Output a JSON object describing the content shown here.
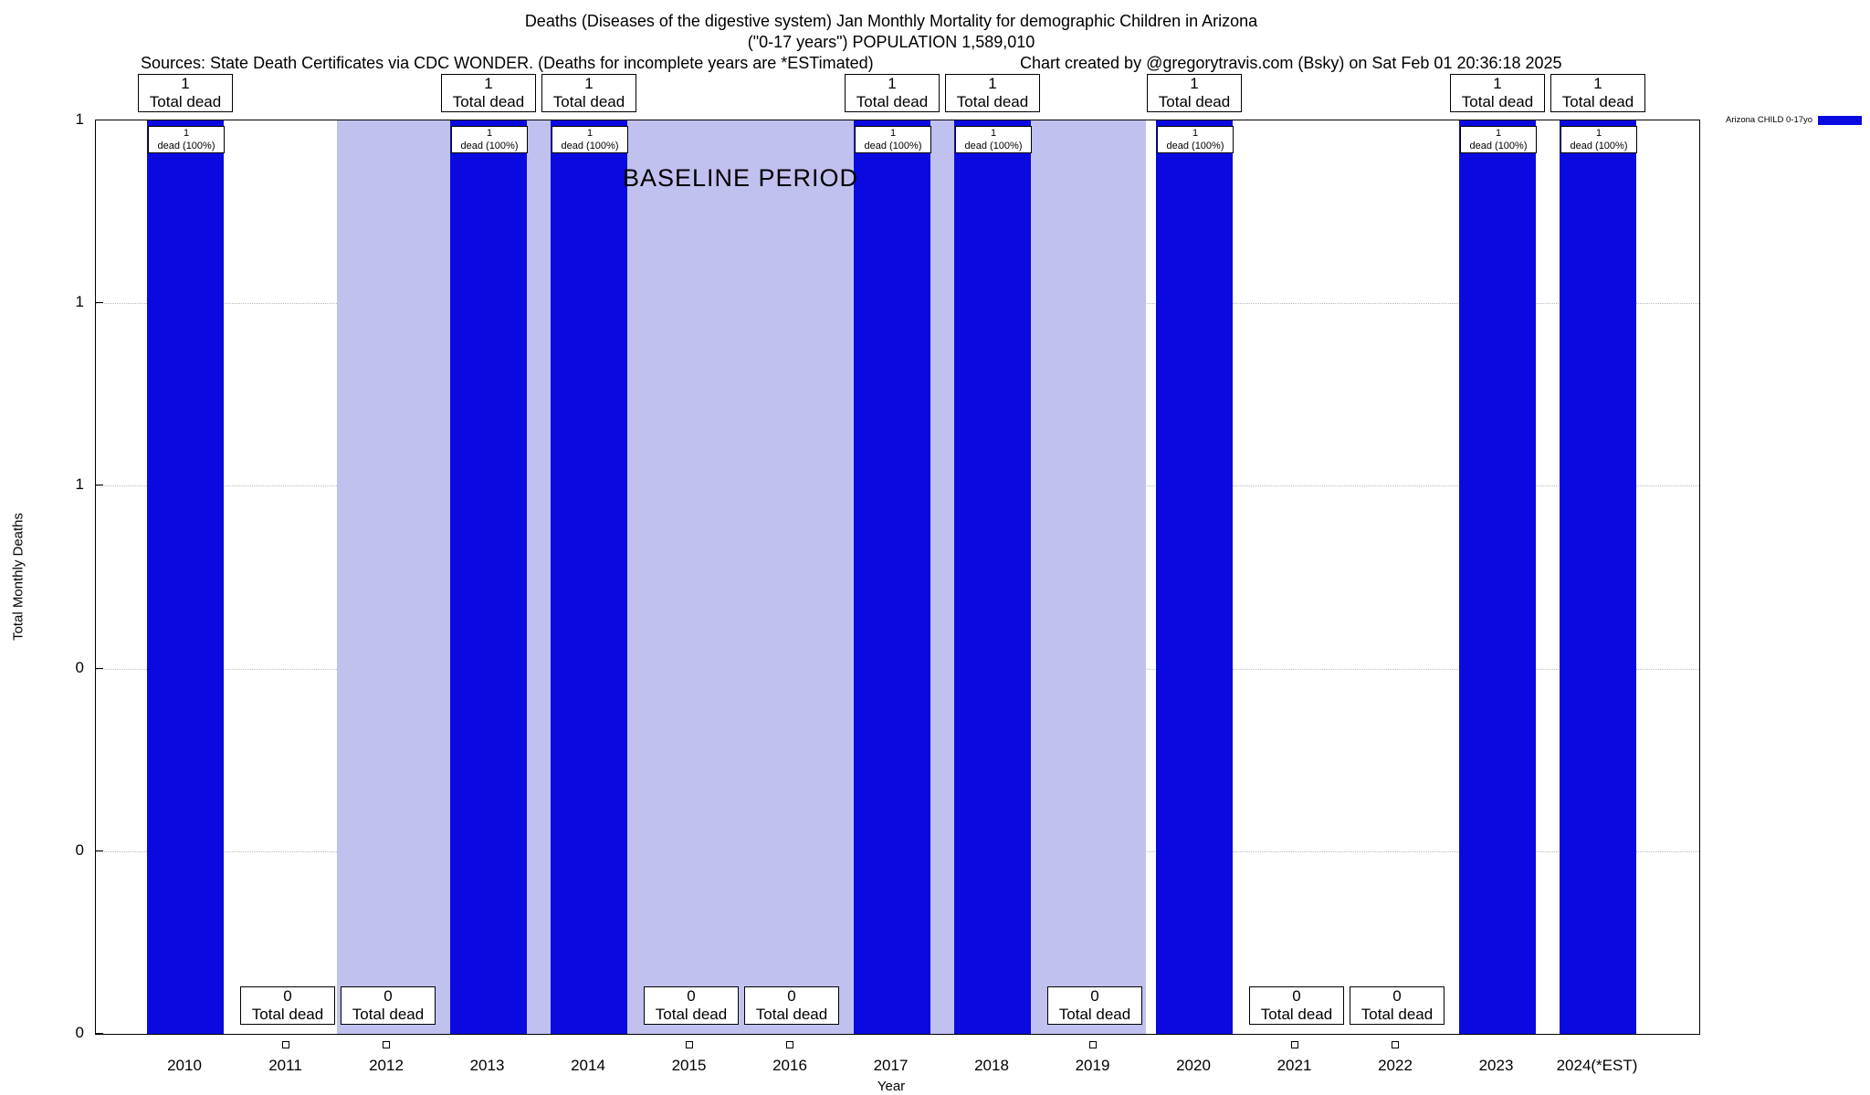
{
  "title": {
    "line1": "Deaths (Diseases of the digestive system) Jan Monthly Mortality for demographic Children in Arizona",
    "line2": "(\"0-17 years\") POPULATION 1,589,010",
    "sources": "Sources: State Death Certificates via CDC WONDER. (Deaths for incomplete years are *ESTimated)",
    "credit": "Chart created by @gregorytravis.com (Bsky) on Sat Feb 01 20:36:18 2025"
  },
  "legend": {
    "label": "Arizona CHILD 0-17yo"
  },
  "chart_data": {
    "type": "bar",
    "title": "Deaths (Diseases of the digestive system) Jan Monthly Mortality for demographic Children in Arizona",
    "subtitle": "(\"0-17 years\") POPULATION 1,589,010",
    "xlabel": "Year",
    "ylabel": "Total Monthly Deaths",
    "categories": [
      "2010",
      "2011",
      "2012",
      "2013",
      "2014",
      "2015",
      "2016",
      "2017",
      "2018",
      "2019",
      "2020",
      "2021",
      "2022",
      "2023",
      "2024(*EST)"
    ],
    "series": [
      {
        "name": "Arizona CHILD 0-17yo",
        "color": "#0a0ae0",
        "values": [
          1,
          0,
          0,
          1,
          1,
          0,
          0,
          1,
          1,
          0,
          1,
          0,
          0,
          1,
          1
        ]
      }
    ],
    "ylim": [
      0,
      1
    ],
    "ytick_labels_top_to_bottom": [
      "1",
      "1",
      "1",
      "0",
      "0",
      "0"
    ],
    "grid": "horizontal-dotted",
    "legend_position": "top-right-outside",
    "baseline_band": {
      "label": "BASELINE PERIOD",
      "from_category": "2012",
      "to_category": "2019",
      "color": "#c1c1f0"
    },
    "annotations": {
      "value_one_top_box": [
        "1",
        "Total dead"
      ],
      "value_one_inner_box": [
        "1",
        "dead (100%)"
      ],
      "value_zero_box": [
        "0",
        "Total dead"
      ]
    }
  }
}
